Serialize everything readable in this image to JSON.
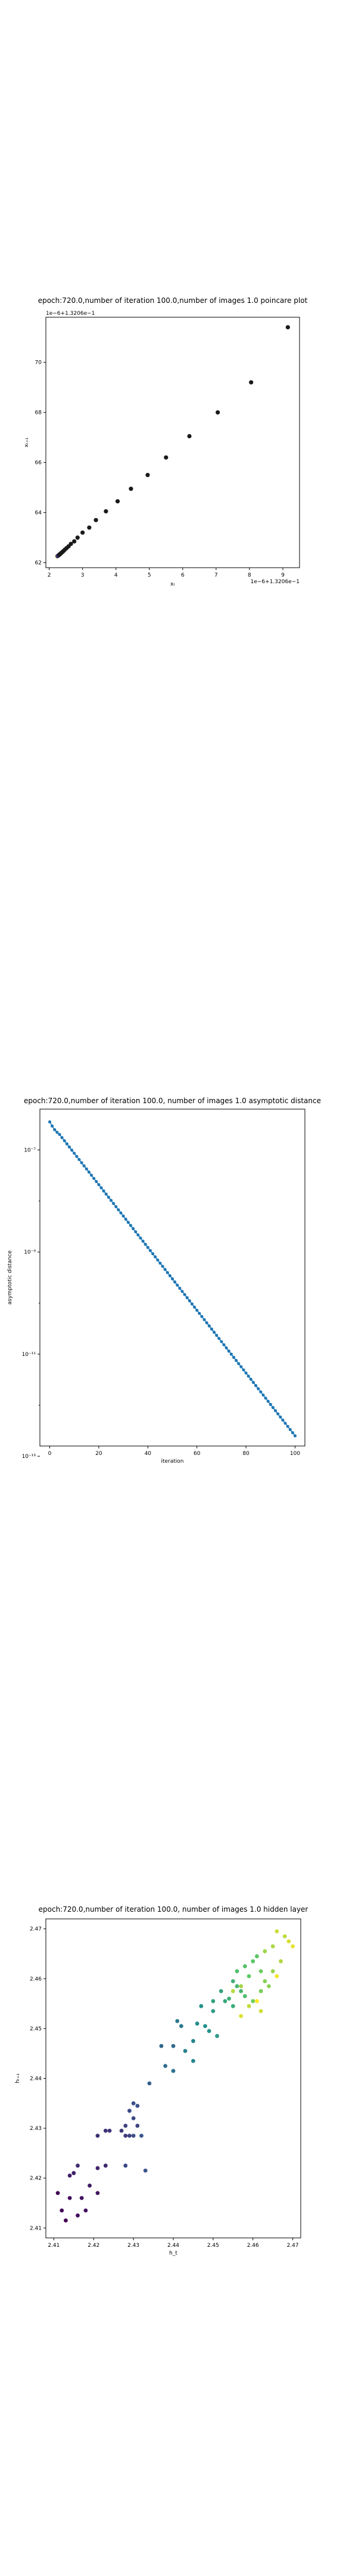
{
  "chart_data": [
    {
      "type": "scatter",
      "title": "epoch:720.0,number of iteration 100.0,number of images 1.0 poincare plot",
      "xlabel": "xₜ",
      "ylabel": "xₜ₊₁",
      "x_offset_label": "1e−6+1.3206e−1",
      "y_offset_label": "1e−6+1.3206e−1",
      "xlim": [
        1.9,
        9.5
      ],
      "ylim": [
        61.8,
        71.8
      ],
      "xticks": [
        "2",
        "3",
        "4",
        "5",
        "6",
        "7",
        "8",
        "9"
      ],
      "yticks": [
        "62",
        "64",
        "66",
        "68",
        "70"
      ],
      "x": [
        9.15,
        8.05,
        7.05,
        6.2,
        5.5,
        4.95,
        4.45,
        4.05,
        3.7,
        3.4,
        3.2,
        3.0,
        2.85,
        2.75,
        2.65,
        2.58,
        2.52,
        2.47,
        2.43,
        2.4,
        2.37,
        2.35,
        2.33,
        2.31,
        2.3,
        2.28,
        2.27,
        2.26,
        2.25,
        2.24
      ],
      "y": [
        71.4,
        69.2,
        68.0,
        67.05,
        66.2,
        65.5,
        64.95,
        64.45,
        64.05,
        63.7,
        63.4,
        63.2,
        63.0,
        62.85,
        62.75,
        62.65,
        62.58,
        62.52,
        62.47,
        62.43,
        62.4,
        62.37,
        62.35,
        62.33,
        62.31,
        62.3,
        62.28,
        62.27,
        62.26,
        62.25
      ],
      "colormap": "viridis",
      "point_color": "#1a1a1a",
      "highlight_color": "#fde725"
    },
    {
      "type": "line",
      "title": "epoch:720.0,number of iteration 100.0, number of images 1.0 asymptotic distance",
      "xlabel": "iteration",
      "ylabel": "asymptotic distance",
      "yscale": "log",
      "xlim": [
        -4,
        104
      ],
      "ylim_log10": [
        -12.8,
        -6.2
      ],
      "xticks": [
        "0",
        "20",
        "40",
        "60",
        "80",
        "100"
      ],
      "yticks": [
        "10⁻⁷",
        "10⁻⁹",
        "10⁻¹¹",
        "10⁻¹³"
      ],
      "ytick_values_log10": [
        -7,
        -9,
        -11,
        -13
      ],
      "series_start": {
        "iteration": 0,
        "log10_distance": -6.45
      },
      "series_end": {
        "iteration": 100,
        "log10_distance": -12.6
      },
      "n_points": 101,
      "color": "#1f77b4"
    },
    {
      "type": "scatter",
      "title": "epoch:720.0,number of iteration 100.0, number of images 1.0 hidden layer",
      "xlabel": "h_t",
      "ylabel": "hₜ₊₁",
      "xlim": [
        2.408,
        2.472
      ],
      "ylim": [
        2.408,
        2.472
      ],
      "xticks": [
        "2.41",
        "2.42",
        "2.43",
        "2.44",
        "2.45",
        "2.46",
        "2.47"
      ],
      "yticks": [
        "2.41",
        "2.42",
        "2.43",
        "2.44",
        "2.45",
        "2.46",
        "2.47"
      ],
      "colormap": "viridis",
      "points": [
        [
          2.413,
          2.4115,
          0.0
        ],
        [
          2.412,
          2.4135,
          0.02
        ],
        [
          2.416,
          2.4125,
          0.03
        ],
        [
          2.418,
          2.4135,
          0.05
        ],
        [
          2.414,
          2.416,
          0.04
        ],
        [
          2.417,
          2.416,
          0.06
        ],
        [
          2.411,
          2.417,
          0.01
        ],
        [
          2.421,
          2.417,
          0.07
        ],
        [
          2.419,
          2.4185,
          0.08
        ],
        [
          2.414,
          2.4205,
          0.09
        ],
        [
          2.415,
          2.421,
          0.1
        ],
        [
          2.421,
          2.422,
          0.11
        ],
        [
          2.423,
          2.4225,
          0.12
        ],
        [
          2.416,
          2.4225,
          0.13
        ],
        [
          2.421,
          2.4285,
          0.14
        ],
        [
          2.423,
          2.4295,
          0.15
        ],
        [
          2.424,
          2.4295,
          0.16
        ],
        [
          2.428,
          2.4285,
          0.18
        ],
        [
          2.429,
          2.4285,
          0.19
        ],
        [
          2.427,
          2.4295,
          0.17
        ],
        [
          2.428,
          2.4305,
          0.2
        ],
        [
          2.431,
          2.4305,
          0.21
        ],
        [
          2.43,
          2.432,
          0.22
        ],
        [
          2.429,
          2.4335,
          0.23
        ],
        [
          2.43,
          2.435,
          0.24
        ],
        [
          2.431,
          2.4345,
          0.25
        ],
        [
          2.428,
          2.4225,
          0.22
        ],
        [
          2.433,
          2.4215,
          0.26
        ],
        [
          2.43,
          2.4285,
          0.24
        ],
        [
          2.432,
          2.4285,
          0.27
        ],
        [
          2.434,
          2.439,
          0.3
        ],
        [
          2.437,
          2.4465,
          0.33
        ],
        [
          2.44,
          2.4465,
          0.35
        ],
        [
          2.438,
          2.4425,
          0.36
        ],
        [
          2.44,
          2.4415,
          0.38
        ],
        [
          2.442,
          2.4505,
          0.4
        ],
        [
          2.441,
          2.4515,
          0.41
        ],
        [
          2.443,
          2.4455,
          0.43
        ],
        [
          2.445,
          2.4475,
          0.45
        ],
        [
          2.445,
          2.4435,
          0.46
        ],
        [
          2.446,
          2.451,
          0.48
        ],
        [
          2.448,
          2.4505,
          0.5
        ],
        [
          2.447,
          2.4545,
          0.51
        ],
        [
          2.449,
          2.4495,
          0.52
        ],
        [
          2.451,
          2.4485,
          0.54
        ],
        [
          2.45,
          2.4535,
          0.55
        ],
        [
          2.45,
          2.4555,
          0.57
        ],
        [
          2.452,
          2.4575,
          0.58
        ],
        [
          2.453,
          2.4555,
          0.6
        ],
        [
          2.455,
          2.4545,
          0.61
        ],
        [
          2.454,
          2.456,
          0.63
        ],
        [
          2.455,
          2.4595,
          0.64
        ],
        [
          2.456,
          2.4585,
          0.66
        ],
        [
          2.457,
          2.4575,
          0.67
        ],
        [
          2.458,
          2.4565,
          0.69
        ],
        [
          2.456,
          2.4615,
          0.7
        ],
        [
          2.458,
          2.4625,
          0.71
        ],
        [
          2.46,
          2.4635,
          0.73
        ],
        [
          2.461,
          2.4645,
          0.74
        ],
        [
          2.459,
          2.4605,
          0.75
        ],
        [
          2.462,
          2.4615,
          0.77
        ],
        [
          2.46,
          2.4555,
          0.78
        ],
        [
          2.462,
          2.4575,
          0.79
        ],
        [
          2.463,
          2.4595,
          0.81
        ],
        [
          2.464,
          2.4585,
          0.82
        ],
        [
          2.465,
          2.4615,
          0.84
        ],
        [
          2.463,
          2.4655,
          0.85
        ],
        [
          2.465,
          2.4665,
          0.87
        ],
        [
          2.467,
          2.4635,
          0.88
        ],
        [
          2.468,
          2.4685,
          0.9
        ],
        [
          2.466,
          2.4695,
          0.92
        ],
        [
          2.469,
          2.4675,
          0.94
        ],
        [
          2.47,
          2.4665,
          0.96
        ],
        [
          2.466,
          2.4605,
          0.98
        ],
        [
          2.461,
          2.4555,
          1.0
        ],
        [
          2.457,
          2.4585,
          0.86
        ],
        [
          2.455,
          2.4575,
          0.89
        ],
        [
          2.459,
          2.4545,
          0.91
        ],
        [
          2.462,
          2.4535,
          0.93
        ],
        [
          2.457,
          2.4525,
          0.95
        ]
      ]
    }
  ]
}
